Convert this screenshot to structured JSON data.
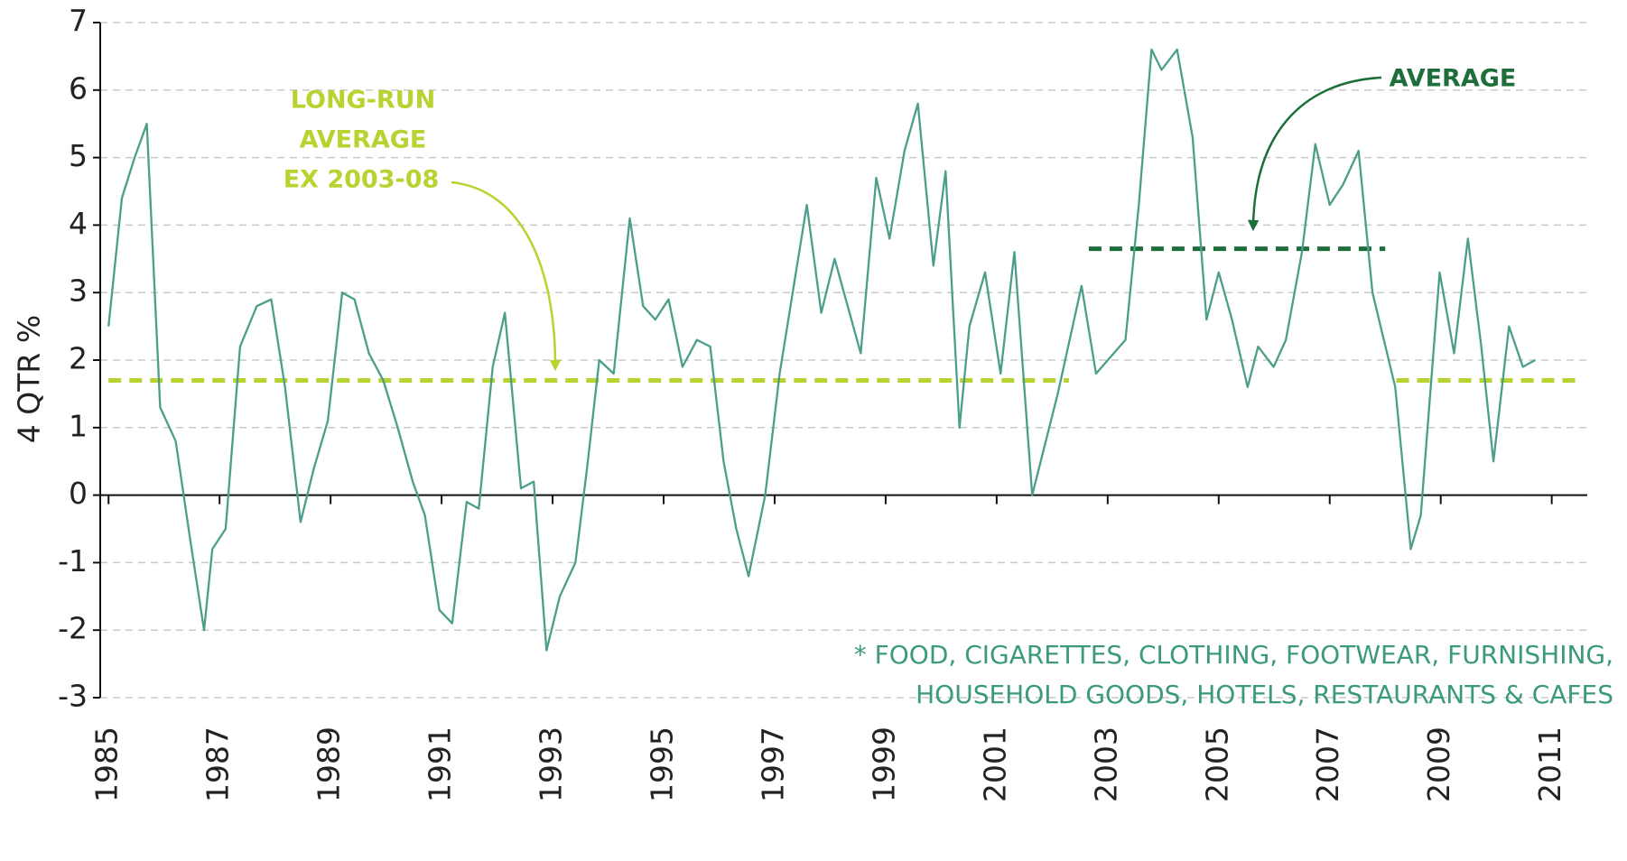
{
  "chart_data": {
    "type": "line",
    "y_label": "4 QTR %",
    "color": "#4a9e8a",
    "x": [
      1985.0,
      1985.24,
      1985.47,
      1985.69,
      1985.93,
      1986.21,
      1986.46,
      1986.72,
      1986.87,
      1987.11,
      1987.37,
      1987.67,
      1987.93,
      1988.18,
      1988.46,
      1988.7,
      1988.95,
      1989.21,
      1989.43,
      1989.69,
      1989.95,
      1990.21,
      1990.48,
      1990.7,
      1990.96,
      1991.19,
      1991.45,
      1991.67,
      1991.92,
      1992.14,
      1992.43,
      1992.66,
      1992.89,
      1993.13,
      1993.41,
      1993.62,
      1993.84,
      1994.1,
      1994.39,
      1994.63,
      1994.85,
      1995.09,
      1995.34,
      1995.6,
      1995.84,
      1996.08,
      1996.31,
      1996.53,
      1996.83,
      1997.09,
      1997.58,
      1997.84,
      1998.08,
      1998.55,
      1998.83,
      1999.07,
      1999.34,
      1999.58,
      1999.86,
      2000.08,
      2000.33,
      2000.51,
      2000.79,
      2001.07,
      2001.32,
      2001.64,
      2002.1,
      2002.53,
      2002.79,
      2003.32,
      2003.56,
      2003.79,
      2003.97,
      2004.25,
      2004.53,
      2004.78,
      2005.0,
      2005.24,
      2005.52,
      2005.71,
      2005.99,
      2006.21,
      2006.5,
      2006.74,
      2007.0,
      2007.24,
      2007.52,
      2007.77,
      2008.18,
      2008.46,
      2008.64,
      2008.98,
      2009.24,
      2009.49,
      2009.73,
      2009.95,
      2010.23,
      2010.48,
      2010.7
    ],
    "values": [
      2.5,
      4.4,
      5.0,
      5.5,
      1.3,
      0.8,
      -0.6,
      -2.0,
      -0.8,
      -0.5,
      2.2,
      2.8,
      2.9,
      1.6,
      -0.4,
      0.4,
      1.1,
      3.0,
      2.9,
      2.1,
      1.7,
      1.0,
      0.2,
      -0.3,
      -1.7,
      -1.9,
      -0.1,
      -0.2,
      1.9,
      2.7,
      0.1,
      0.2,
      -2.3,
      -1.5,
      -1.0,
      0.4,
      2.0,
      1.8,
      4.1,
      2.8,
      2.6,
      2.9,
      1.9,
      2.3,
      2.2,
      0.5,
      -0.5,
      -1.2,
      0.0,
      1.8,
      4.3,
      2.7,
      3.5,
      2.1,
      4.7,
      3.8,
      5.1,
      5.8,
      3.4,
      4.8,
      1.0,
      2.5,
      3.3,
      1.8,
      3.6,
      0.0,
      1.5,
      3.1,
      1.8,
      2.3,
      4.3,
      6.6,
      6.3,
      6.6,
      5.3,
      2.6,
      3.3,
      2.6,
      1.6,
      2.2,
      1.9,
      2.3,
      3.6,
      5.2,
      4.3,
      4.6,
      5.1,
      3.0,
      1.6,
      -0.8,
      -0.3,
      3.3,
      2.1,
      3.8,
      2.2,
      0.5,
      2.5,
      1.9,
      2.0
    ],
    "xlim": [
      1984.85,
      2011.64
    ],
    "xticks": [
      1985,
      1987,
      1989,
      1991,
      1993,
      1995,
      1997,
      1999,
      2001,
      2003,
      2005,
      2007,
      2009,
      2011
    ],
    "ylim": [
      -3,
      7
    ],
    "yticks": [
      -3,
      -2,
      -1,
      0,
      1,
      2,
      3,
      4,
      5,
      6,
      7
    ],
    "grid": true,
    "reference_lines": [
      {
        "value": 1.7,
        "color": "#b8d230",
        "segments": [
          [
            1985.0,
            2002.3
          ],
          [
            2008.2,
            2011.5
          ]
        ]
      },
      {
        "value": 3.65,
        "color": "#1e6e3c",
        "segments": [
          [
            2002.66,
            2008.0
          ]
        ]
      }
    ],
    "annotations": {
      "long_run": [
        "LONG-RUN",
        "AVERAGE",
        "EX 2003-08"
      ],
      "average": "AVERAGE",
      "footnote": [
        "* FOOD, CIGARETTES, CLOTHING, FOOTWEAR, FURNISHING,",
        "HOUSEHOLD GOODS, HOTELS, RESTAURANTS & CAFES"
      ]
    }
  }
}
